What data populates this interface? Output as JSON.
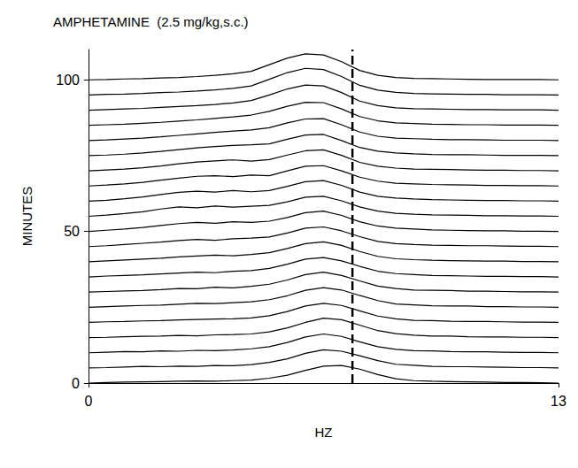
{
  "chart_data": {
    "type": "waterfall",
    "title": "AMPHETAMINE  (2.5 mg/kg,s.c.)",
    "x_label": "HZ",
    "y_label": "MINUTES",
    "color": "#000000",
    "xlim": [
      0,
      13
    ],
    "xticks": [
      0,
      13
    ],
    "ylim": [
      0,
      110
    ],
    "yticks": [
      0,
      50,
      100
    ],
    "grid": false,
    "reference_line": {
      "x": 7.3,
      "line_style": "dashed"
    },
    "x": [
      0,
      0.5,
      1,
      1.5,
      2,
      2.5,
      3,
      3.5,
      4,
      4.5,
      5,
      5.5,
      6,
      6.5,
      7,
      7.5,
      8,
      8.5,
      9,
      9.5,
      10,
      10.5,
      11,
      11.5,
      12,
      12.5,
      13
    ],
    "traces": [
      {
        "minute": 0,
        "values": [
          0,
          0.2,
          0.3,
          0.4,
          0.5,
          0.6,
          0.7,
          0.6,
          0.8,
          1.0,
          1.6,
          2.6,
          4.2,
          5.6,
          5.8,
          4.6,
          2.8,
          1.4,
          0.8,
          0.6,
          0.5,
          0.4,
          0.3,
          0.2,
          0.2,
          0.1,
          0
        ]
      },
      {
        "minute": 5,
        "values": [
          0,
          0.1,
          0.3,
          0.5,
          0.4,
          0.6,
          0.5,
          0.8,
          0.7,
          1.1,
          1.8,
          3.0,
          4.8,
          6.0,
          5.5,
          4.0,
          2.4,
          1.2,
          0.9,
          0.5,
          0.4,
          0.4,
          0.3,
          0.2,
          0.1,
          0.1,
          0
        ]
      },
      {
        "minute": 10,
        "values": [
          0,
          0.2,
          0.4,
          0.3,
          0.6,
          0.5,
          0.8,
          0.7,
          0.9,
          1.3,
          2.0,
          3.4,
          5.2,
          6.2,
          5.4,
          3.6,
          2.0,
          1.1,
          0.7,
          0.6,
          0.4,
          0.3,
          0.3,
          0.2,
          0.1,
          0.1,
          0
        ]
      },
      {
        "minute": 15,
        "values": [
          0,
          0.1,
          0.3,
          0.4,
          0.5,
          0.7,
          0.6,
          0.9,
          1.0,
          1.2,
          1.9,
          3.2,
          5.0,
          6.4,
          5.9,
          4.1,
          2.3,
          1.3,
          0.8,
          0.5,
          0.5,
          0.3,
          0.2,
          0.2,
          0.1,
          0.1,
          0
        ]
      },
      {
        "minute": 20,
        "values": [
          0,
          0.2,
          0.3,
          0.5,
          0.6,
          0.8,
          1.0,
          1.1,
          1.2,
          1.5,
          2.2,
          3.6,
          5.4,
          6.3,
          5.6,
          3.8,
          2.1,
          1.2,
          0.7,
          0.6,
          0.4,
          0.3,
          0.3,
          0.2,
          0.1,
          0.1,
          0
        ]
      },
      {
        "minute": 25,
        "values": [
          0,
          0.2,
          0.4,
          0.6,
          0.7,
          1.0,
          1.3,
          1.2,
          1.5,
          1.8,
          2.5,
          3.8,
          5.6,
          6.5,
          5.7,
          3.9,
          2.2,
          1.1,
          0.8,
          0.5,
          0.4,
          0.4,
          0.2,
          0.2,
          0.1,
          0.1,
          0
        ]
      },
      {
        "minute": 30,
        "values": [
          0,
          0.2,
          0.4,
          0.5,
          0.8,
          1.2,
          1.1,
          1.6,
          1.4,
          1.9,
          2.6,
          4.0,
          5.8,
          6.6,
          5.5,
          3.7,
          2.0,
          1.2,
          0.7,
          0.6,
          0.5,
          0.3,
          0.3,
          0.2,
          0.1,
          0.1,
          0
        ]
      },
      {
        "minute": 35,
        "values": [
          0,
          0.3,
          0.5,
          0.7,
          1.0,
          1.3,
          1.6,
          1.4,
          1.9,
          2.1,
          2.8,
          4.2,
          5.9,
          6.4,
          5.3,
          3.5,
          1.9,
          1.1,
          0.8,
          0.5,
          0.4,
          0.3,
          0.2,
          0.2,
          0.1,
          0.1,
          0
        ]
      },
      {
        "minute": 40,
        "values": [
          0,
          0.3,
          0.6,
          0.9,
          1.2,
          1.6,
          1.9,
          2.2,
          2.0,
          2.4,
          3.0,
          4.4,
          6.0,
          6.6,
          5.4,
          3.4,
          1.8,
          1.0,
          0.7,
          0.5,
          0.4,
          0.3,
          0.2,
          0.2,
          0.1,
          0.1,
          0
        ]
      },
      {
        "minute": 45,
        "values": [
          0,
          0.3,
          0.7,
          1.1,
          1.5,
          2.0,
          2.4,
          2.1,
          2.6,
          2.8,
          3.2,
          4.5,
          6.1,
          6.5,
          5.2,
          3.3,
          1.7,
          1.0,
          0.7,
          0.5,
          0.4,
          0.3,
          0.3,
          0.2,
          0.1,
          0.1,
          0
        ]
      },
      {
        "minute": 50,
        "values": [
          0,
          0.4,
          0.8,
          1.3,
          2.0,
          2.6,
          3.0,
          2.7,
          3.2,
          3.0,
          3.4,
          4.6,
          6.2,
          6.7,
          5.3,
          3.2,
          1.8,
          1.1,
          0.8,
          0.5,
          0.4,
          0.3,
          0.2,
          0.2,
          0.1,
          0.1,
          0
        ]
      },
      {
        "minute": 55,
        "values": [
          0,
          0.4,
          0.9,
          1.5,
          2.4,
          3.1,
          2.8,
          3.4,
          3.0,
          3.3,
          3.6,
          4.8,
          6.3,
          6.6,
          5.1,
          3.1,
          1.7,
          1.0,
          0.7,
          0.5,
          0.4,
          0.3,
          0.2,
          0.2,
          0.1,
          0.1,
          0
        ]
      },
      {
        "minute": 60,
        "values": [
          0,
          0.3,
          0.8,
          1.4,
          2.2,
          2.9,
          3.3,
          3.0,
          3.5,
          3.1,
          3.5,
          4.9,
          6.4,
          6.8,
          5.2,
          3.0,
          1.6,
          1.0,
          0.7,
          0.5,
          0.4,
          0.3,
          0.2,
          0.2,
          0.1,
          0.1,
          0
        ]
      },
      {
        "minute": 65,
        "values": [
          0,
          0.3,
          0.7,
          1.2,
          1.9,
          2.6,
          3.2,
          3.4,
          3.1,
          3.6,
          3.4,
          5.0,
          6.5,
          6.7,
          5.0,
          2.9,
          1.6,
          0.9,
          0.7,
          0.5,
          0.4,
          0.3,
          0.2,
          0.2,
          0.1,
          0.1,
          0
        ]
      },
      {
        "minute": 70,
        "values": [
          0,
          0.3,
          0.6,
          1.0,
          1.6,
          2.3,
          2.9,
          3.3,
          3.6,
          3.2,
          3.7,
          5.2,
          6.6,
          6.9,
          5.1,
          2.8,
          1.5,
          0.9,
          0.6,
          0.5,
          0.4,
          0.3,
          0.2,
          0.2,
          0.1,
          0.1,
          0
        ]
      },
      {
        "minute": 75,
        "values": [
          0,
          0.2,
          0.5,
          0.9,
          1.4,
          2.0,
          2.6,
          3.0,
          3.4,
          3.6,
          3.9,
          5.4,
          6.8,
          7.0,
          5.0,
          2.7,
          1.5,
          0.9,
          0.6,
          0.4,
          0.3,
          0.3,
          0.2,
          0.1,
          0.1,
          0.1,
          0
        ]
      },
      {
        "minute": 80,
        "values": [
          0,
          0.2,
          0.5,
          0.8,
          1.2,
          1.7,
          2.2,
          2.7,
          3.1,
          3.5,
          4.2,
          5.8,
          7.1,
          7.2,
          5.2,
          2.8,
          1.4,
          0.8,
          0.6,
          0.4,
          0.3,
          0.3,
          0.2,
          0.1,
          0.1,
          0.1,
          0
        ]
      },
      {
        "minute": 85,
        "values": [
          0,
          0.2,
          0.4,
          0.7,
          1.0,
          1.4,
          1.8,
          2.3,
          2.8,
          3.4,
          4.6,
          6.3,
          7.6,
          7.5,
          5.4,
          2.9,
          1.5,
          0.8,
          0.6,
          0.4,
          0.3,
          0.2,
          0.2,
          0.1,
          0.1,
          0.1,
          0
        ]
      },
      {
        "minute": 90,
        "values": [
          0,
          0.2,
          0.4,
          0.6,
          0.9,
          1.2,
          1.5,
          1.9,
          2.4,
          3.2,
          5.0,
          7.0,
          8.3,
          8.0,
          5.8,
          3.0,
          1.5,
          0.8,
          0.5,
          0.4,
          0.3,
          0.2,
          0.2,
          0.1,
          0.1,
          0.1,
          0
        ]
      },
      {
        "minute": 95,
        "values": [
          0,
          0.2,
          0.3,
          0.5,
          0.8,
          1.0,
          1.3,
          1.7,
          2.2,
          3.0,
          5.2,
          7.4,
          8.8,
          8.4,
          6.1,
          3.2,
          1.6,
          0.9,
          0.5,
          0.4,
          0.3,
          0.2,
          0.2,
          0.1,
          0.1,
          0.1,
          0
        ]
      },
      {
        "minute": 100,
        "values": [
          0,
          0.1,
          0.3,
          0.4,
          0.6,
          0.8,
          1.1,
          1.5,
          2.0,
          2.8,
          5.0,
          7.2,
          8.6,
          8.2,
          6.0,
          3.1,
          1.5,
          0.8,
          0.5,
          0.4,
          0.3,
          0.2,
          0.1,
          0.1,
          0.1,
          0.1,
          0
        ]
      }
    ]
  }
}
